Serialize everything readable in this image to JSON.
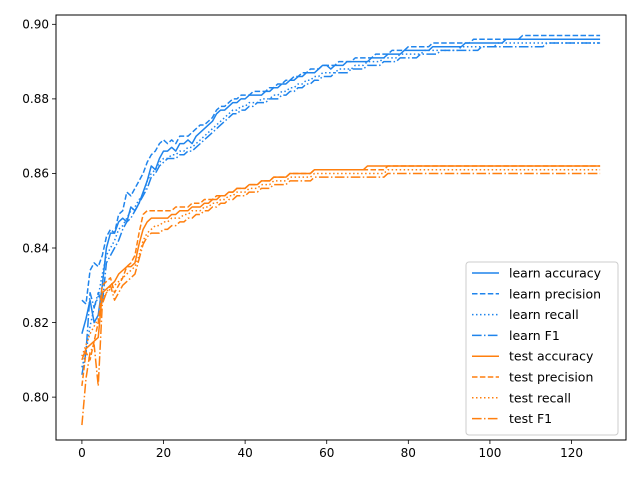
{
  "chart_data": {
    "type": "line",
    "title": "",
    "xlabel": "",
    "ylabel": "",
    "xlim": [
      -6.35,
      133.35
    ],
    "ylim": [
      0.7885,
      0.9025
    ],
    "x_ticks": [
      0,
      20,
      40,
      60,
      80,
      100,
      120
    ],
    "y_ticks": [
      0.8,
      0.82,
      0.84,
      0.86,
      0.88,
      0.9
    ],
    "y_tick_labels": [
      "0.80",
      "0.82",
      "0.84",
      "0.86",
      "0.88",
      "0.90"
    ],
    "grid": false,
    "legend_position": "lower-right",
    "colors": {
      "learn": "#1f84ec",
      "test": "#ff7f0e"
    },
    "x_start": 0,
    "x_step": 1,
    "series": [
      {
        "name": "learn accuracy",
        "group": "learn",
        "style": "solid",
        "values": [
          0.817,
          0.821,
          0.826,
          0.82,
          0.822,
          0.83,
          0.84,
          0.844,
          0.844,
          0.847,
          0.848,
          0.847,
          0.851,
          0.85,
          0.852,
          0.855,
          0.858,
          0.862,
          0.861,
          0.864,
          0.866,
          0.866,
          0.867,
          0.866,
          0.868,
          0.868,
          0.869,
          0.868,
          0.87,
          0.871,
          0.872,
          0.873,
          0.874,
          0.876,
          0.877,
          0.877,
          0.878,
          0.879,
          0.879,
          0.88,
          0.88,
          0.881,
          0.881,
          0.881,
          0.881,
          0.882,
          0.882,
          0.883,
          0.883,
          0.884,
          0.884,
          0.885,
          0.885,
          0.886,
          0.886,
          0.887,
          0.887,
          0.887,
          0.888,
          0.889,
          0.889,
          0.888,
          0.889,
          0.889,
          0.889,
          0.89,
          0.89,
          0.89,
          0.89,
          0.89,
          0.89,
          0.891,
          0.891,
          0.891,
          0.891,
          0.892,
          0.892,
          0.892,
          0.892,
          0.893,
          0.893,
          0.893,
          0.893,
          0.893,
          0.893,
          0.893,
          0.894,
          0.894,
          0.894,
          0.894,
          0.894,
          0.894,
          0.894,
          0.894,
          0.895,
          0.895,
          0.895,
          0.895,
          0.895,
          0.895,
          0.895,
          0.895,
          0.895,
          0.895,
          0.896,
          0.896,
          0.896,
          0.896,
          0.896,
          0.896,
          0.896,
          0.896,
          0.896,
          0.896,
          0.896,
          0.896,
          0.896,
          0.896,
          0.896,
          0.896,
          0.896,
          0.896,
          0.896,
          0.896,
          0.896,
          0.896,
          0.896,
          0.896
        ]
      },
      {
        "name": "learn precision",
        "group": "learn",
        "style": "dashed",
        "values": [
          0.826,
          0.825,
          0.834,
          0.836,
          0.835,
          0.838,
          0.843,
          0.845,
          0.844,
          0.849,
          0.85,
          0.855,
          0.854,
          0.856,
          0.858,
          0.86,
          0.863,
          0.865,
          0.866,
          0.868,
          0.869,
          0.868,
          0.869,
          0.868,
          0.87,
          0.87,
          0.87,
          0.871,
          0.872,
          0.873,
          0.873,
          0.874,
          0.875,
          0.877,
          0.878,
          0.878,
          0.879,
          0.88,
          0.88,
          0.881,
          0.881,
          0.881,
          0.882,
          0.882,
          0.882,
          0.882,
          0.883,
          0.883,
          0.884,
          0.884,
          0.885,
          0.885,
          0.886,
          0.886,
          0.887,
          0.887,
          0.888,
          0.888,
          0.888,
          0.889,
          0.889,
          0.889,
          0.889,
          0.89,
          0.89,
          0.89,
          0.89,
          0.891,
          0.891,
          0.891,
          0.891,
          0.891,
          0.892,
          0.892,
          0.892,
          0.892,
          0.893,
          0.893,
          0.893,
          0.893,
          0.894,
          0.894,
          0.894,
          0.894,
          0.894,
          0.894,
          0.895,
          0.895,
          0.895,
          0.895,
          0.895,
          0.895,
          0.895,
          0.895,
          0.895,
          0.895,
          0.896,
          0.896,
          0.896,
          0.896,
          0.896,
          0.896,
          0.896,
          0.896,
          0.896,
          0.896,
          0.896,
          0.896,
          0.897,
          0.897,
          0.897,
          0.897,
          0.897,
          0.897,
          0.897,
          0.897,
          0.897,
          0.897,
          0.897,
          0.897,
          0.897,
          0.897,
          0.897,
          0.897,
          0.897,
          0.897,
          0.897,
          0.897
        ]
      },
      {
        "name": "learn recall",
        "group": "learn",
        "style": "dotted",
        "values": [
          0.808,
          0.812,
          0.819,
          0.824,
          0.827,
          0.833,
          0.838,
          0.84,
          0.842,
          0.845,
          0.846,
          0.848,
          0.85,
          0.851,
          0.853,
          0.854,
          0.858,
          0.86,
          0.861,
          0.863,
          0.864,
          0.864,
          0.865,
          0.865,
          0.866,
          0.866,
          0.867,
          0.867,
          0.868,
          0.869,
          0.87,
          0.871,
          0.872,
          0.873,
          0.874,
          0.875,
          0.876,
          0.877,
          0.877,
          0.878,
          0.878,
          0.879,
          0.879,
          0.879,
          0.88,
          0.88,
          0.88,
          0.881,
          0.881,
          0.882,
          0.882,
          0.883,
          0.883,
          0.884,
          0.884,
          0.885,
          0.885,
          0.886,
          0.886,
          0.887,
          0.887,
          0.887,
          0.887,
          0.888,
          0.888,
          0.888,
          0.888,
          0.889,
          0.889,
          0.889,
          0.89,
          0.89,
          0.89,
          0.89,
          0.891,
          0.891,
          0.891,
          0.891,
          0.892,
          0.892,
          0.892,
          0.892,
          0.892,
          0.892,
          0.893,
          0.893,
          0.893,
          0.893,
          0.893,
          0.893,
          0.893,
          0.893,
          0.893,
          0.894,
          0.894,
          0.894,
          0.894,
          0.894,
          0.894,
          0.894,
          0.894,
          0.894,
          0.895,
          0.895,
          0.895,
          0.895,
          0.895,
          0.895,
          0.895,
          0.895,
          0.895,
          0.895,
          0.895,
          0.895,
          0.895,
          0.895,
          0.895,
          0.895,
          0.895,
          0.895,
          0.895,
          0.895,
          0.895,
          0.895,
          0.895,
          0.895,
          0.895,
          0.895
        ]
      },
      {
        "name": "learn F1",
        "group": "learn",
        "style": "dashdot",
        "values": [
          0.806,
          0.812,
          0.828,
          0.824,
          0.828,
          0.825,
          0.836,
          0.838,
          0.84,
          0.842,
          0.845,
          0.847,
          0.848,
          0.85,
          0.852,
          0.854,
          0.856,
          0.859,
          0.86,
          0.862,
          0.863,
          0.864,
          0.864,
          0.864,
          0.865,
          0.865,
          0.866,
          0.866,
          0.867,
          0.868,
          0.869,
          0.87,
          0.871,
          0.872,
          0.873,
          0.874,
          0.875,
          0.876,
          0.876,
          0.877,
          0.877,
          0.878,
          0.878,
          0.879,
          0.879,
          0.879,
          0.88,
          0.88,
          0.88,
          0.881,
          0.881,
          0.882,
          0.882,
          0.883,
          0.883,
          0.884,
          0.884,
          0.885,
          0.885,
          0.886,
          0.886,
          0.886,
          0.887,
          0.887,
          0.887,
          0.887,
          0.888,
          0.888,
          0.888,
          0.888,
          0.889,
          0.889,
          0.889,
          0.889,
          0.89,
          0.89,
          0.89,
          0.89,
          0.891,
          0.891,
          0.891,
          0.891,
          0.891,
          0.892,
          0.892,
          0.892,
          0.892,
          0.892,
          0.893,
          0.893,
          0.893,
          0.893,
          0.893,
          0.893,
          0.893,
          0.893,
          0.893,
          0.893,
          0.894,
          0.894,
          0.894,
          0.894,
          0.894,
          0.894,
          0.894,
          0.894,
          0.894,
          0.894,
          0.894,
          0.894,
          0.894,
          0.894,
          0.894,
          0.894,
          0.895,
          0.895,
          0.895,
          0.895,
          0.895,
          0.895,
          0.895,
          0.895,
          0.895,
          0.895,
          0.895,
          0.895,
          0.895,
          0.895
        ]
      },
      {
        "name": "test accuracy",
        "group": "test",
        "style": "solid",
        "values": [
          0.81,
          0.813,
          0.814,
          0.815,
          0.816,
          0.828,
          0.829,
          0.83,
          0.831,
          0.833,
          0.834,
          0.835,
          0.835,
          0.836,
          0.841,
          0.845,
          0.847,
          0.848,
          0.848,
          0.848,
          0.848,
          0.848,
          0.849,
          0.849,
          0.85,
          0.85,
          0.85,
          0.851,
          0.851,
          0.851,
          0.852,
          0.852,
          0.853,
          0.853,
          0.854,
          0.854,
          0.855,
          0.855,
          0.856,
          0.856,
          0.856,
          0.857,
          0.857,
          0.857,
          0.858,
          0.858,
          0.858,
          0.859,
          0.859,
          0.859,
          0.859,
          0.86,
          0.86,
          0.86,
          0.86,
          0.86,
          0.86,
          0.861,
          0.861,
          0.861,
          0.861,
          0.861,
          0.861,
          0.861,
          0.861,
          0.861,
          0.861,
          0.861,
          0.861,
          0.861,
          0.862,
          0.862,
          0.862,
          0.862,
          0.862,
          0.862,
          0.862,
          0.862,
          0.862,
          0.862,
          0.862,
          0.862,
          0.862,
          0.862,
          0.862,
          0.862,
          0.862,
          0.862,
          0.862,
          0.862,
          0.862,
          0.862,
          0.862,
          0.862,
          0.862,
          0.862,
          0.862,
          0.862,
          0.862,
          0.862,
          0.862,
          0.862,
          0.862,
          0.862,
          0.862,
          0.862,
          0.862,
          0.862,
          0.862,
          0.862,
          0.862,
          0.862,
          0.862,
          0.862,
          0.862,
          0.862,
          0.862,
          0.862,
          0.862,
          0.862,
          0.862,
          0.862,
          0.862,
          0.862,
          0.862,
          0.862,
          0.862,
          0.862
        ]
      },
      {
        "name": "test precision",
        "group": "test",
        "style": "dashed",
        "values": [
          0.803,
          0.812,
          0.81,
          0.815,
          0.82,
          0.83,
          0.831,
          0.832,
          0.828,
          0.83,
          0.832,
          0.835,
          0.836,
          0.838,
          0.844,
          0.849,
          0.85,
          0.85,
          0.85,
          0.85,
          0.85,
          0.85,
          0.85,
          0.851,
          0.851,
          0.851,
          0.851,
          0.852,
          0.852,
          0.852,
          0.853,
          0.853,
          0.853,
          0.854,
          0.854,
          0.854,
          0.855,
          0.855,
          0.856,
          0.856,
          0.856,
          0.857,
          0.857,
          0.857,
          0.858,
          0.858,
          0.858,
          0.859,
          0.859,
          0.859,
          0.859,
          0.86,
          0.86,
          0.86,
          0.86,
          0.86,
          0.86,
          0.861,
          0.861,
          0.861,
          0.861,
          0.861,
          0.861,
          0.861,
          0.861,
          0.861,
          0.861,
          0.861,
          0.861,
          0.861,
          0.861,
          0.861,
          0.861,
          0.861,
          0.861,
          0.862,
          0.862,
          0.862,
          0.862,
          0.862,
          0.862,
          0.862,
          0.862,
          0.862,
          0.862,
          0.862,
          0.862,
          0.862,
          0.862,
          0.862,
          0.862,
          0.862,
          0.862,
          0.862,
          0.862,
          0.862,
          0.862,
          0.862,
          0.862,
          0.862,
          0.862,
          0.862,
          0.862,
          0.862,
          0.862,
          0.862,
          0.862,
          0.862,
          0.862,
          0.862,
          0.862,
          0.862,
          0.862,
          0.862,
          0.862,
          0.862,
          0.862,
          0.862,
          0.862,
          0.862,
          0.862,
          0.862,
          0.862,
          0.862,
          0.862,
          0.862,
          0.862,
          0.862
        ]
      },
      {
        "name": "test recall",
        "group": "test",
        "style": "dotted",
        "values": [
          0.811,
          0.814,
          0.817,
          0.819,
          0.821,
          0.826,
          0.828,
          0.829,
          0.83,
          0.831,
          0.832,
          0.833,
          0.834,
          0.835,
          0.838,
          0.842,
          0.844,
          0.845,
          0.846,
          0.846,
          0.847,
          0.847,
          0.848,
          0.848,
          0.848,
          0.849,
          0.849,
          0.85,
          0.85,
          0.85,
          0.851,
          0.851,
          0.852,
          0.852,
          0.853,
          0.853,
          0.854,
          0.854,
          0.855,
          0.855,
          0.855,
          0.856,
          0.856,
          0.856,
          0.857,
          0.857,
          0.857,
          0.858,
          0.858,
          0.858,
          0.858,
          0.859,
          0.859,
          0.859,
          0.859,
          0.859,
          0.859,
          0.86,
          0.86,
          0.86,
          0.86,
          0.86,
          0.86,
          0.86,
          0.86,
          0.86,
          0.86,
          0.86,
          0.86,
          0.86,
          0.86,
          0.86,
          0.86,
          0.86,
          0.86,
          0.861,
          0.861,
          0.861,
          0.861,
          0.861,
          0.861,
          0.861,
          0.861,
          0.861,
          0.861,
          0.861,
          0.861,
          0.861,
          0.861,
          0.861,
          0.861,
          0.861,
          0.861,
          0.861,
          0.861,
          0.861,
          0.861,
          0.861,
          0.861,
          0.861,
          0.861,
          0.861,
          0.861,
          0.861,
          0.861,
          0.861,
          0.861,
          0.861,
          0.861,
          0.861,
          0.861,
          0.861,
          0.861,
          0.861,
          0.861,
          0.861,
          0.861,
          0.861,
          0.861,
          0.861,
          0.861,
          0.861,
          0.861,
          0.861,
          0.861,
          0.861,
          0.861,
          0.861
        ]
      },
      {
        "name": "test F1",
        "group": "test",
        "style": "dashdot",
        "values": [
          0.7925,
          0.805,
          0.812,
          0.814,
          0.803,
          0.825,
          0.828,
          0.83,
          0.826,
          0.828,
          0.83,
          0.831,
          0.832,
          0.833,
          0.837,
          0.841,
          0.843,
          0.844,
          0.844,
          0.844,
          0.845,
          0.845,
          0.846,
          0.846,
          0.847,
          0.847,
          0.848,
          0.848,
          0.849,
          0.849,
          0.85,
          0.85,
          0.851,
          0.851,
          0.852,
          0.852,
          0.853,
          0.853,
          0.854,
          0.854,
          0.854,
          0.855,
          0.855,
          0.855,
          0.856,
          0.856,
          0.856,
          0.857,
          0.857,
          0.857,
          0.857,
          0.858,
          0.858,
          0.858,
          0.858,
          0.858,
          0.858,
          0.859,
          0.859,
          0.859,
          0.859,
          0.859,
          0.859,
          0.859,
          0.859,
          0.859,
          0.859,
          0.859,
          0.859,
          0.859,
          0.859,
          0.859,
          0.859,
          0.859,
          0.859,
          0.86,
          0.86,
          0.86,
          0.86,
          0.86,
          0.86,
          0.86,
          0.86,
          0.86,
          0.86,
          0.86,
          0.86,
          0.86,
          0.86,
          0.86,
          0.86,
          0.86,
          0.86,
          0.86,
          0.86,
          0.86,
          0.86,
          0.86,
          0.86,
          0.86,
          0.86,
          0.86,
          0.86,
          0.86,
          0.86,
          0.86,
          0.86,
          0.86,
          0.86,
          0.86,
          0.86,
          0.86,
          0.86,
          0.86,
          0.86,
          0.86,
          0.86,
          0.86,
          0.86,
          0.86,
          0.86,
          0.86,
          0.86,
          0.86,
          0.86,
          0.86,
          0.86,
          0.86
        ]
      }
    ]
  }
}
